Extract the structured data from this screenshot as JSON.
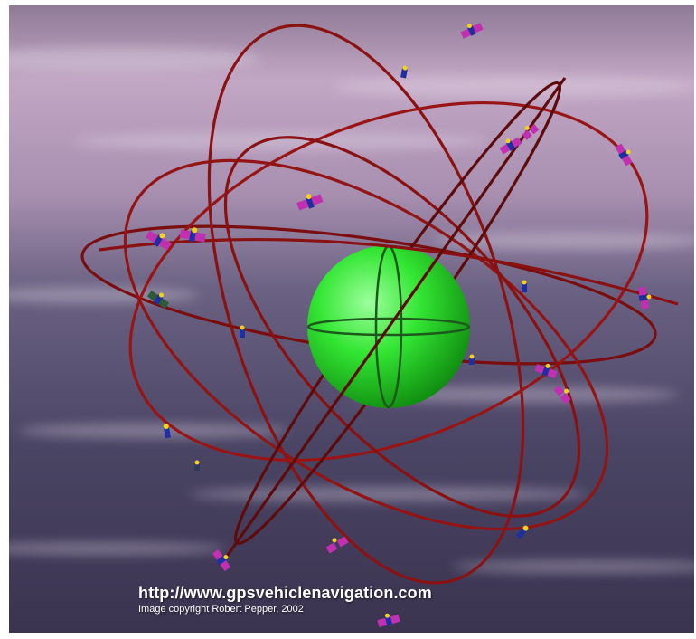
{
  "image": {
    "subject": "GPS satellite constellation",
    "earth_color": "#2fe02f",
    "orbit_color": "#8a1010",
    "sky_top_color": "#b89ab8",
    "sky_bottom_color": "#3b3552",
    "satellite_panel_color": "#c030b0",
    "satellite_body_color": "#1f2f9f"
  },
  "caption": {
    "url": "http://www.gpsvehiclenavigation.com",
    "copyright": "Image copyright Robert Pepper, 2002"
  }
}
